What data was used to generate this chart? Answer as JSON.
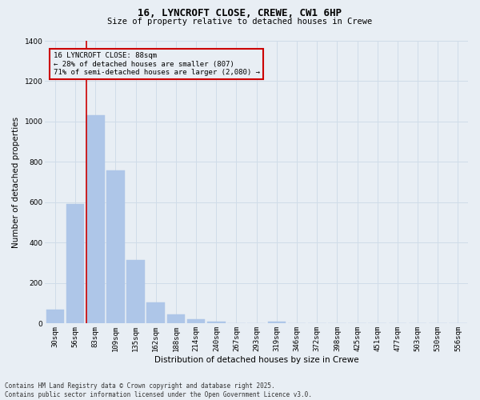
{
  "title": "16, LYNCROFT CLOSE, CREWE, CW1 6HP",
  "subtitle": "Size of property relative to detached houses in Crewe",
  "xlabel": "Distribution of detached houses by size in Crewe",
  "ylabel": "Number of detached properties",
  "categories": [
    "30sqm",
    "56sqm",
    "83sqm",
    "109sqm",
    "135sqm",
    "162sqm",
    "188sqm",
    "214sqm",
    "240sqm",
    "267sqm",
    "293sqm",
    "319sqm",
    "346sqm",
    "372sqm",
    "398sqm",
    "425sqm",
    "451sqm",
    "477sqm",
    "503sqm",
    "530sqm",
    "556sqm"
  ],
  "values": [
    70,
    590,
    1030,
    760,
    315,
    105,
    45,
    20,
    10,
    0,
    0,
    10,
    0,
    0,
    0,
    0,
    0,
    0,
    0,
    0,
    0
  ],
  "bar_color": "#aec6e8",
  "bar_edgecolor": "#aec6e8",
  "grid_color": "#d0dce8",
  "background_color": "#e8eef4",
  "ylim": [
    0,
    1400
  ],
  "yticks": [
    0,
    200,
    400,
    600,
    800,
    1000,
    1200,
    1400
  ],
  "property_label": "16 LYNCROFT CLOSE: 88sqm",
  "annotation_line1": "← 28% of detached houses are smaller (807)",
  "annotation_line2": "71% of semi-detached houses are larger (2,080) →",
  "vline_color": "#cc0000",
  "box_color": "#cc0000",
  "footnote1": "Contains HM Land Registry data © Crown copyright and database right 2025.",
  "footnote2": "Contains public sector information licensed under the Open Government Licence v3.0.",
  "title_fontsize": 9,
  "subtitle_fontsize": 7.5,
  "ylabel_fontsize": 7.5,
  "xlabel_fontsize": 7.5,
  "tick_fontsize": 6.5,
  "annot_fontsize": 6.5,
  "footnote_fontsize": 5.5
}
